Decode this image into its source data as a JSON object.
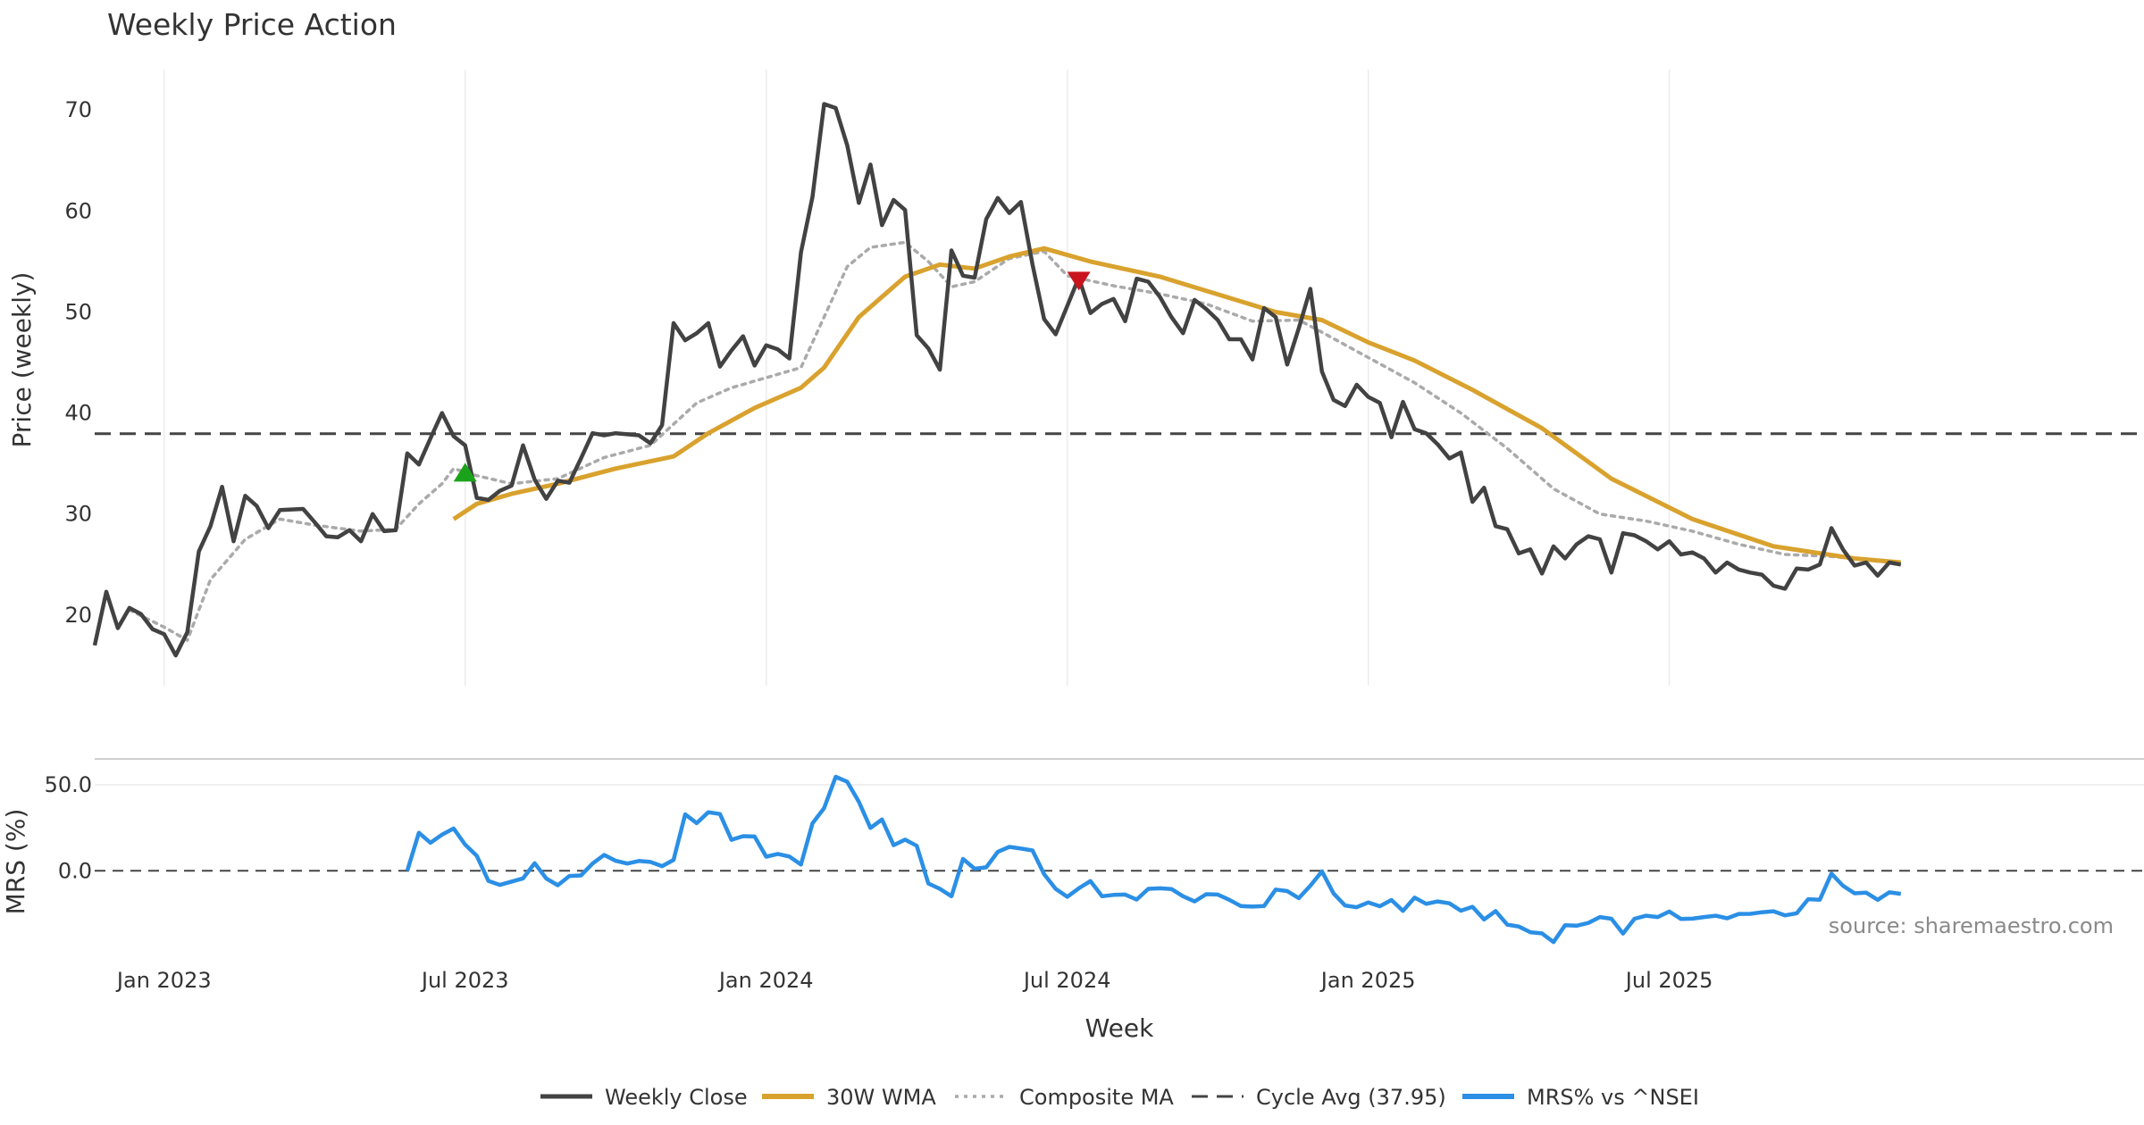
{
  "chart_data": {
    "type": "line",
    "title": "Weekly Price Action",
    "xlabel": "Week",
    "source": "source: sharemaestro.com",
    "x_ticks": [
      "Jan 2023",
      "Jul 2023",
      "Jan 2024",
      "Jul 2024",
      "Jan 2025",
      "Jul 2025"
    ],
    "weeks_count": 178,
    "colors": {
      "close": "#424242",
      "wma": "#d9a22e",
      "composite": "#aaaaaa",
      "cycle": "#444444",
      "mrs": "#2b8fe5",
      "buy_marker": "#1aa31a",
      "sell_marker": "#c9141d"
    },
    "price_panel": {
      "ylabel": "Price (weekly)",
      "ylim": [
        13,
        74
      ],
      "yticks": [
        "20",
        "30",
        "40",
        "50",
        "60",
        "70"
      ],
      "ytick_values": [
        20,
        30,
        40,
        50,
        60,
        70
      ],
      "cycle_avg": 37.95,
      "close_anchors": [
        [
          0,
          17
        ],
        [
          1,
          22.3
        ],
        [
          2,
          18.7
        ],
        [
          3,
          20.7
        ],
        [
          4,
          20.1
        ],
        [
          5,
          18.6
        ],
        [
          6,
          18.1
        ],
        [
          7,
          16
        ],
        [
          8,
          18.3
        ],
        [
          9,
          26.3
        ],
        [
          10,
          28.8
        ],
        [
          11,
          32.7
        ],
        [
          12,
          27.3
        ],
        [
          13,
          31.8
        ],
        [
          14,
          30.8
        ],
        [
          15,
          28.6
        ],
        [
          16,
          30.4
        ],
        [
          18,
          30.5
        ],
        [
          19,
          29.2
        ],
        [
          20,
          27.8
        ],
        [
          21,
          27.7
        ],
        [
          22,
          28.4
        ],
        [
          23,
          27.3
        ],
        [
          24,
          30
        ],
        [
          25,
          28.3
        ],
        [
          26,
          28.4
        ],
        [
          27,
          36
        ],
        [
          28,
          34.9
        ],
        [
          29,
          37.5
        ],
        [
          30,
          40
        ],
        [
          31,
          37.7
        ],
        [
          32,
          36.8
        ],
        [
          33,
          31.6
        ],
        [
          34,
          31.4
        ],
        [
          35,
          32.3
        ],
        [
          36,
          32.8
        ],
        [
          37,
          36.8
        ],
        [
          38,
          33.4
        ],
        [
          39,
          31.5
        ],
        [
          40,
          33.3
        ],
        [
          41,
          33.1
        ],
        [
          42,
          35.5
        ],
        [
          43,
          38
        ],
        [
          44,
          37.8
        ],
        [
          45,
          38
        ],
        [
          47,
          37.8
        ],
        [
          48,
          37
        ],
        [
          49,
          38.8
        ],
        [
          50,
          48.9
        ],
        [
          51,
          47.2
        ],
        [
          52,
          47.9
        ],
        [
          53,
          48.9
        ],
        [
          54,
          44.6
        ],
        [
          55,
          46.2
        ],
        [
          56,
          47.6
        ],
        [
          57,
          44.7
        ],
        [
          58,
          46.7
        ],
        [
          59,
          46.3
        ],
        [
          60,
          45.4
        ],
        [
          61,
          55.9
        ],
        [
          62,
          61.4
        ],
        [
          63,
          70.6
        ],
        [
          64,
          70.2
        ],
        [
          65,
          66.5
        ],
        [
          66,
          60.8
        ],
        [
          67,
          64.6
        ],
        [
          68,
          58.6
        ],
        [
          69,
          61.1
        ],
        [
          70,
          60.1
        ],
        [
          71,
          47.7
        ],
        [
          72,
          46.4
        ],
        [
          73,
          44.3
        ],
        [
          74,
          56.1
        ],
        [
          75,
          53.6
        ],
        [
          76,
          53.4
        ],
        [
          77,
          59.2
        ],
        [
          78,
          61.3
        ],
        [
          79,
          59.8
        ],
        [
          80,
          60.9
        ],
        [
          81,
          54.7
        ],
        [
          82,
          49.3
        ],
        [
          83,
          47.8
        ],
        [
          84,
          50.6
        ],
        [
          85,
          53.4
        ],
        [
          86,
          49.9
        ],
        [
          87,
          50.8
        ],
        [
          88,
          51.3
        ],
        [
          89,
          49.1
        ],
        [
          90,
          53.3
        ],
        [
          91,
          53
        ],
        [
          92,
          51.5
        ],
        [
          93,
          49.5
        ],
        [
          94,
          47.9
        ],
        [
          95,
          51.2
        ],
        [
          96,
          50.3
        ],
        [
          97,
          49.2
        ],
        [
          98,
          47.3
        ],
        [
          99,
          47.3
        ],
        [
          100,
          45.3
        ],
        [
          101,
          50.4
        ],
        [
          102,
          49.5
        ],
        [
          103,
          44.8
        ],
        [
          104,
          48.4
        ],
        [
          105,
          52.3
        ],
        [
          106,
          44.1
        ],
        [
          107,
          41.3
        ],
        [
          108,
          40.7
        ],
        [
          109,
          42.8
        ],
        [
          110,
          41.6
        ],
        [
          111,
          41
        ],
        [
          112,
          37.6
        ],
        [
          113,
          41.1
        ],
        [
          114,
          38.4
        ],
        [
          115,
          38
        ],
        [
          116,
          36.9
        ],
        [
          117,
          35.5
        ],
        [
          118,
          36.1
        ],
        [
          119,
          31.2
        ],
        [
          120,
          32.6
        ],
        [
          121,
          28.8
        ],
        [
          122,
          28.5
        ],
        [
          123,
          26.1
        ],
        [
          124,
          26.5
        ],
        [
          125,
          24.1
        ],
        [
          126,
          26.8
        ],
        [
          127,
          25.6
        ],
        [
          128,
          27
        ],
        [
          129,
          27.8
        ],
        [
          130,
          27.5
        ],
        [
          131,
          24.2
        ],
        [
          132,
          28.1
        ],
        [
          133,
          27.9
        ],
        [
          134,
          27.3
        ],
        [
          135,
          26.5
        ],
        [
          136,
          27.3
        ],
        [
          137,
          26
        ],
        [
          138,
          26.2
        ],
        [
          139,
          25.6
        ],
        [
          140,
          24.2
        ],
        [
          141,
          25.2
        ],
        [
          142,
          24.5
        ],
        [
          143,
          24.2
        ],
        [
          144,
          24
        ],
        [
          145,
          22.9
        ],
        [
          146,
          22.6
        ],
        [
          147,
          24.6
        ],
        [
          148,
          24.5
        ],
        [
          149,
          25
        ],
        [
          150,
          28.6
        ],
        [
          151,
          26.5
        ],
        [
          152,
          24.9
        ],
        [
          153,
          25.2
        ],
        [
          154,
          23.9
        ],
        [
          155,
          25.2
        ],
        [
          156,
          25
        ]
      ],
      "wma_anchors": [
        [
          31,
          29.5
        ],
        [
          33,
          31
        ],
        [
          36,
          32
        ],
        [
          40,
          33
        ],
        [
          45,
          34.5
        ],
        [
          50,
          35.7
        ],
        [
          53,
          38
        ],
        [
          57,
          40.5
        ],
        [
          61,
          42.5
        ],
        [
          63,
          44.5
        ],
        [
          66,
          49.5
        ],
        [
          70,
          53.5
        ],
        [
          73,
          54.7
        ],
        [
          76,
          54.3
        ],
        [
          79,
          55.5
        ],
        [
          82,
          56.3
        ],
        [
          86,
          55
        ],
        [
          92,
          53.5
        ],
        [
          98,
          51.4
        ],
        [
          102,
          50
        ],
        [
          106,
          49.2
        ],
        [
          110,
          47
        ],
        [
          114,
          45.2
        ],
        [
          119,
          42.3
        ],
        [
          125,
          38.5
        ],
        [
          131,
          33.5
        ],
        [
          138,
          29.5
        ],
        [
          145,
          26.8
        ],
        [
          152,
          25.6
        ],
        [
          156,
          25.2
        ]
      ],
      "composite_anchors": [
        [
          3,
          20.5
        ],
        [
          6,
          18.8
        ],
        [
          8,
          17.5
        ],
        [
          10,
          23.5
        ],
        [
          13,
          27.5
        ],
        [
          16,
          29.5
        ],
        [
          19,
          28.9
        ],
        [
          23,
          28.3
        ],
        [
          26,
          28.5
        ],
        [
          28,
          31
        ],
        [
          30,
          33
        ],
        [
          31,
          34.5
        ],
        [
          33,
          33.8
        ],
        [
          36,
          33
        ],
        [
          40,
          33.5
        ],
        [
          44,
          35.6
        ],
        [
          48,
          36.8
        ],
        [
          52,
          41
        ],
        [
          55,
          42.5
        ],
        [
          58,
          43.5
        ],
        [
          61,
          44.5
        ],
        [
          63,
          49.5
        ],
        [
          65,
          54.5
        ],
        [
          67,
          56.4
        ],
        [
          70,
          56.9
        ],
        [
          72,
          55
        ],
        [
          74,
          52.5
        ],
        [
          76,
          53
        ],
        [
          79,
          55.3
        ],
        [
          82,
          56
        ],
        [
          84,
          53.6
        ],
        [
          88,
          52.6
        ],
        [
          92,
          51.8
        ],
        [
          96,
          50.8
        ],
        [
          100,
          49.1
        ],
        [
          104,
          49.2
        ],
        [
          106,
          48
        ],
        [
          110,
          45.5
        ],
        [
          114,
          43
        ],
        [
          118,
          40
        ],
        [
          122,
          36.5
        ],
        [
          126,
          32.5
        ],
        [
          130,
          30
        ],
        [
          134,
          29.3
        ],
        [
          138,
          28.3
        ],
        [
          142,
          27
        ],
        [
          146,
          26
        ],
        [
          150,
          25.8
        ],
        [
          156,
          25.1
        ]
      ],
      "buy_signal": {
        "week": 32,
        "value": 34.1
      },
      "sell_signal": {
        "week": 85,
        "value": 53.1
      }
    },
    "mrs_panel": {
      "ylabel": "MRS (%)",
      "ylim": [
        -45,
        65
      ],
      "yticks": [
        "50.0",
        "0.0"
      ],
      "ytick_values": [
        50,
        0
      ],
      "anchors": [
        [
          27,
          0
        ],
        [
          28,
          22.1
        ],
        [
          29,
          16.3
        ],
        [
          30,
          21
        ],
        [
          31,
          24.6
        ],
        [
          32,
          15.2
        ],
        [
          33,
          8.7
        ],
        [
          34,
          -5.9
        ],
        [
          35,
          -8.2
        ],
        [
          37,
          -4.4
        ],
        [
          38,
          4.4
        ],
        [
          39,
          -4.5
        ],
        [
          40,
          -8.4
        ],
        [
          41,
          -3
        ],
        [
          42,
          -2.7
        ],
        [
          43,
          4.2
        ],
        [
          44,
          9.2
        ],
        [
          45,
          5.8
        ],
        [
          46,
          4.2
        ],
        [
          47,
          5.7
        ],
        [
          48,
          5.1
        ],
        [
          49,
          2.7
        ],
        [
          50,
          6.3
        ],
        [
          51,
          32.8
        ],
        [
          52,
          27.7
        ],
        [
          53,
          34
        ],
        [
          54,
          33
        ],
        [
          55,
          18
        ],
        [
          56,
          20.1
        ],
        [
          57,
          19.9
        ],
        [
          58,
          8.2
        ],
        [
          59,
          9.8
        ],
        [
          60,
          8.3
        ],
        [
          61,
          3.6
        ],
        [
          62,
          27.6
        ],
        [
          63,
          36.4
        ],
        [
          64,
          54.6
        ],
        [
          65,
          51.7
        ],
        [
          66,
          40.1
        ],
        [
          67,
          24.9
        ],
        [
          68,
          29.8
        ],
        [
          69,
          14.9
        ],
        [
          70,
          18.1
        ],
        [
          71,
          14.5
        ],
        [
          72,
          -7.4
        ],
        [
          73,
          -10.5
        ],
        [
          74,
          -14.8
        ],
        [
          75,
          6.9
        ],
        [
          76,
          1.2
        ],
        [
          77,
          2
        ],
        [
          78,
          11
        ],
        [
          79,
          13.9
        ],
        [
          80,
          12.9
        ],
        [
          81,
          11.8
        ],
        [
          82,
          -2
        ],
        [
          83,
          -10.5
        ],
        [
          84,
          -15.1
        ],
        [
          85,
          -10.2
        ],
        [
          86,
          -6
        ],
        [
          87,
          -14.8
        ],
        [
          88,
          -14
        ],
        [
          89,
          -13.8
        ],
        [
          90,
          -16.7
        ],
        [
          91,
          -10.5
        ],
        [
          92,
          -10.2
        ],
        [
          93,
          -10.6
        ],
        [
          94,
          -14.8
        ],
        [
          95,
          -17.8
        ],
        [
          96,
          -13.6
        ],
        [
          97,
          -13.8
        ],
        [
          98,
          -16.9
        ],
        [
          99,
          -20.5
        ],
        [
          100,
          -20.8
        ],
        [
          101,
          -20.5
        ],
        [
          102,
          -10.9
        ],
        [
          103,
          -11.8
        ],
        [
          104,
          -15.9
        ],
        [
          105,
          -8.7
        ],
        [
          106,
          -0.3
        ],
        [
          107,
          -13.2
        ],
        [
          108,
          -20.2
        ],
        [
          109,
          -21.2
        ],
        [
          110,
          -18.4
        ],
        [
          111,
          -20.6
        ],
        [
          112,
          -17
        ],
        [
          113,
          -23.3
        ],
        [
          114,
          -15.6
        ],
        [
          115,
          -19.2
        ],
        [
          116,
          -17.8
        ],
        [
          117,
          -18.9
        ],
        [
          118,
          -23.2
        ],
        [
          119,
          -20.9
        ],
        [
          120,
          -28.3
        ],
        [
          121,
          -23.4
        ],
        [
          122,
          -31.3
        ],
        [
          123,
          -32.4
        ],
        [
          124,
          -35.7
        ],
        [
          125,
          -36.4
        ],
        [
          126,
          -41.4
        ],
        [
          127,
          -31.6
        ],
        [
          128,
          -31.9
        ],
        [
          129,
          -30.3
        ],
        [
          130,
          -26.9
        ],
        [
          131,
          -27.9
        ],
        [
          132,
          -36.5
        ],
        [
          133,
          -27.9
        ],
        [
          134,
          -26.1
        ],
        [
          135,
          -26.9
        ],
        [
          136,
          -23.7
        ],
        [
          137,
          -28
        ],
        [
          138,
          -27.8
        ],
        [
          139,
          -26.9
        ],
        [
          140,
          -26.1
        ],
        [
          141,
          -27.6
        ],
        [
          142,
          -25.1
        ],
        [
          143,
          -25
        ],
        [
          144,
          -24.1
        ],
        [
          145,
          -23.5
        ],
        [
          146,
          -25.9
        ],
        [
          147,
          -24.7
        ],
        [
          148,
          -16.5
        ],
        [
          149,
          -16.8
        ],
        [
          150,
          -1.6
        ],
        [
          151,
          -8.7
        ],
        [
          152,
          -13.1
        ],
        [
          153,
          -12.7
        ],
        [
          154,
          -16.9
        ],
        [
          155,
          -12.5
        ],
        [
          156,
          -13.4
        ]
      ]
    },
    "legend": [
      {
        "key": "close",
        "label": "Weekly Close"
      },
      {
        "key": "wma",
        "label": "30W WMA"
      },
      {
        "key": "composite",
        "label": "Composite MA"
      },
      {
        "key": "cycle",
        "label": "Cycle Avg (37.95)"
      },
      {
        "key": "mrs",
        "label": "MRS% vs ^NSEI"
      }
    ]
  }
}
